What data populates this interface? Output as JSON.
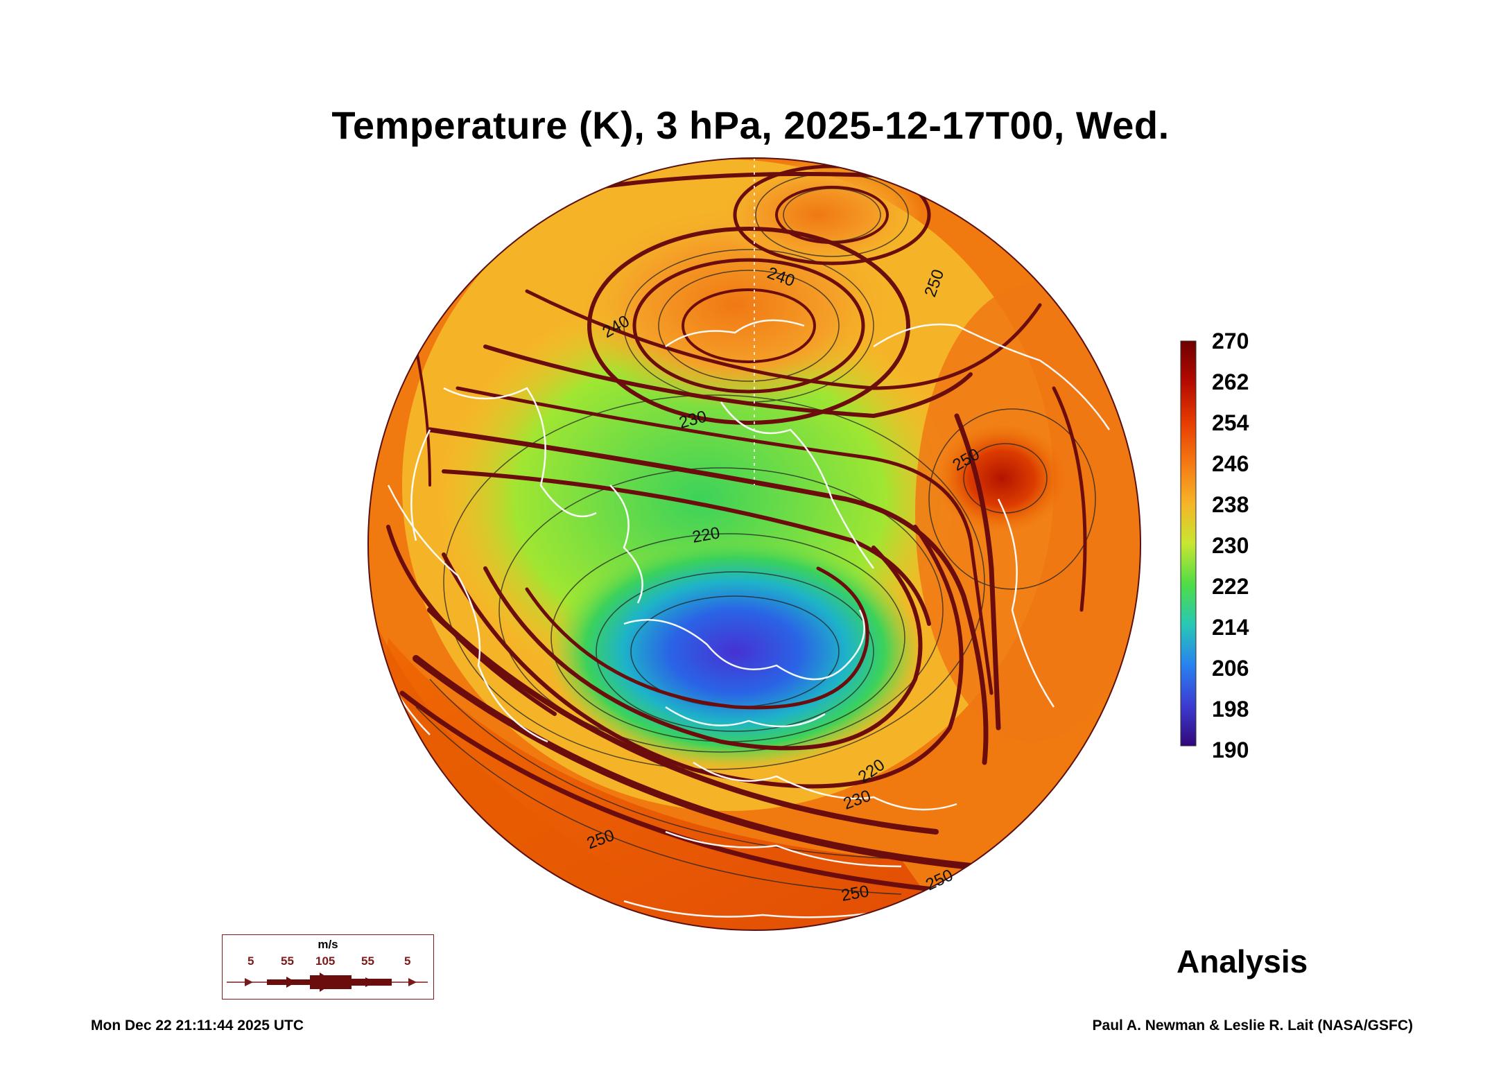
{
  "title": "Temperature (K), 3 hPa, 2025-12-17T00, Wed.",
  "colorbar": {
    "labels": [
      "270",
      "262",
      "254",
      "246",
      "238",
      "230",
      "222",
      "214",
      "206",
      "198",
      "190"
    ],
    "colors": [
      "#6e0000",
      "#a50000",
      "#d81c00",
      "#f05a00",
      "#f58c1e",
      "#f5be28",
      "#c8e632",
      "#50dc46",
      "#28c8b4",
      "#2896f0",
      "#2850dc",
      "#5028c8",
      "#3c0a82"
    ]
  },
  "contour_labels": [
    "240",
    "240",
    "250",
    "230",
    "220",
    "250",
    "220",
    "230",
    "250",
    "250",
    "250"
  ],
  "wind_legend": {
    "unit": "m/s",
    "speeds": [
      "5",
      "55",
      "105",
      "55",
      "5"
    ]
  },
  "analysis_label": "Analysis",
  "timestamp": "Mon Dec 22 21:11:44 2025 UTC",
  "credit": "Paul A. Newman & Leslie R. Lait (NASA/GSFC)",
  "colors": {
    "stream": "#6b0d0d",
    "coast": "#ffffff",
    "contour": "#222222"
  }
}
